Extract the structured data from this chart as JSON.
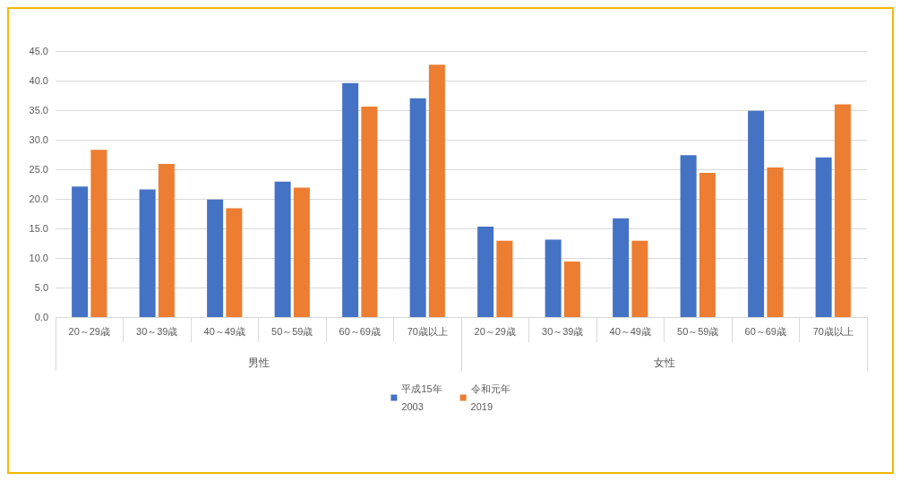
{
  "chart_data": {
    "type": "bar",
    "categories": [
      "20～29歳",
      "30～39歳",
      "40～49歳",
      "50～59歳",
      "60～69歳",
      "70歳以上",
      "20～29歳",
      "30～39歳",
      "40～49歳",
      "50～59歳",
      "60～69歳",
      "70歳以上"
    ],
    "annotations": [
      "男性",
      "女性"
    ],
    "series": [
      {
        "name": "平成15年\n2003",
        "color": "#4472c4",
        "values": [
          22.1,
          21.6,
          19.9,
          22.9,
          39.6,
          37.0,
          15.3,
          13.1,
          16.7,
          27.4,
          34.9,
          27.0
        ]
      },
      {
        "name": "令和元年\n2019",
        "color": "#ed7d31",
        "values": [
          28.3,
          25.9,
          18.4,
          21.9,
          35.6,
          42.7,
          12.9,
          9.4,
          12.9,
          24.4,
          25.3,
          36.0
        ]
      }
    ],
    "ylim": [
      0,
      45
    ],
    "yticks": [
      {
        "value": 0,
        "label": "0.0"
      },
      {
        "value": 5,
        "label": "5.0"
      },
      {
        "value": 10,
        "label": "10.0"
      },
      {
        "value": 15,
        "label": "15.0"
      },
      {
        "value": 20,
        "label": "20.0"
      },
      {
        "value": 25,
        "label": "25.0"
      },
      {
        "value": 30,
        "label": "30.0"
      },
      {
        "value": 35,
        "label": "35.0"
      },
      {
        "value": 40,
        "label": "40.0"
      },
      {
        "value": 45,
        "label": "45.0"
      }
    ],
    "grid": "y",
    "legend": "bottom"
  }
}
